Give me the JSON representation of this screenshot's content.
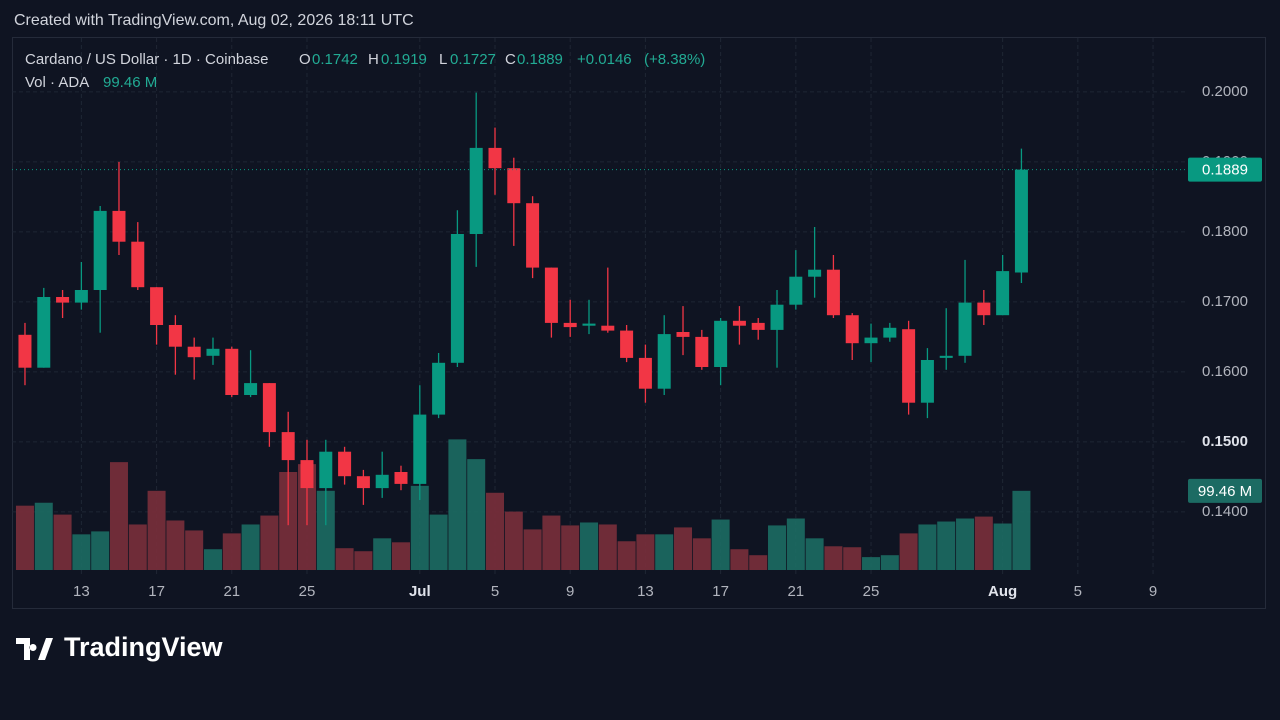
{
  "chart_data": {
    "type": "candlestick",
    "watermark": "Created with TradingView.com, Aug 02, 2026 18:11 UTC",
    "symbol": "Cardano / US Dollar · 1D · Coinbase",
    "ohlc_labels": [
      "O",
      "H",
      "L",
      "C"
    ],
    "change": "+0.0146",
    "change_pct": "(+8.38%)",
    "volume_name": "Vol · ADA",
    "volume_value_label": "99.46 M",
    "brand": "TradingView",
    "open": [
      0.1653,
      0.1606,
      0.1707,
      0.1699,
      0.1717,
      0.183,
      0.1786,
      0.1721,
      0.1667,
      0.1636,
      0.1623,
      0.1633,
      0.1567,
      0.1584,
      0.1514,
      0.1474,
      0.1434,
      0.1486,
      0.1451,
      0.1434,
      0.1457,
      0.144,
      0.1539,
      0.1613,
      0.1797,
      0.192,
      0.1891,
      0.1841,
      0.1749,
      0.167,
      0.1666,
      0.1666,
      0.1659,
      0.162,
      0.1576,
      0.1657,
      0.165,
      0.1607,
      0.1673,
      0.167,
      0.166,
      0.1696,
      0.1736,
      0.1746,
      0.1681,
      0.1641,
      0.1649,
      0.1661,
      0.1556,
      0.162,
      0.1623,
      0.1699,
      0.1681,
      0.1742
    ],
    "high": [
      0.167,
      0.172,
      0.1717,
      0.1757,
      0.1837,
      0.19,
      0.1814,
      0.1721,
      0.1681,
      0.1649,
      0.1649,
      0.1636,
      0.1631,
      0.1584,
      0.1543,
      0.1503,
      0.1503,
      0.1493,
      0.146,
      0.1486,
      0.1466,
      0.1581,
      0.1627,
      0.1831,
      0.1999,
      0.1949,
      0.1906,
      0.1851,
      0.1749,
      0.1703,
      0.1703,
      0.1749,
      0.1667,
      0.1639,
      0.1681,
      0.1694,
      0.166,
      0.1677,
      0.1694,
      0.1677,
      0.1717,
      0.1774,
      0.1807,
      0.1767,
      0.1684,
      0.1669,
      0.167,
      0.1673,
      0.1634,
      0.1691,
      0.176,
      0.1717,
      0.1767,
      0.1919
    ],
    "low": [
      0.1581,
      0.1606,
      0.1677,
      0.1689,
      0.1656,
      0.1767,
      0.1717,
      0.1639,
      0.1596,
      0.1589,
      0.161,
      0.1564,
      0.1564,
      0.1493,
      0.1381,
      0.1381,
      0.1381,
      0.1439,
      0.141,
      0.142,
      0.1431,
      0.1417,
      0.1534,
      0.1607,
      0.175,
      0.1853,
      0.178,
      0.1734,
      0.1649,
      0.165,
      0.1654,
      0.1656,
      0.1614,
      0.1556,
      0.1567,
      0.1624,
      0.1603,
      0.1581,
      0.1639,
      0.1646,
      0.1606,
      0.1689,
      0.1706,
      0.1677,
      0.1617,
      0.1614,
      0.1643,
      0.1539,
      0.1534,
      0.1603,
      0.1613,
      0.1667,
      0.1681,
      0.1727
    ],
    "close": [
      0.1606,
      0.1707,
      0.1699,
      0.1717,
      0.183,
      0.1786,
      0.1721,
      0.1667,
      0.1636,
      0.1621,
      0.1633,
      0.1567,
      0.1584,
      0.1514,
      0.1474,
      0.1434,
      0.1486,
      0.1451,
      0.1434,
      0.1453,
      0.144,
      0.1539,
      0.1613,
      0.1797,
      0.192,
      0.1891,
      0.1841,
      0.1749,
      0.167,
      0.1664,
      0.1669,
      0.1659,
      0.162,
      0.1576,
      0.1654,
      0.165,
      0.1607,
      0.1673,
      0.1666,
      0.166,
      0.1696,
      0.1736,
      0.1746,
      0.1681,
      0.1641,
      0.1649,
      0.1663,
      0.1556,
      0.1617,
      0.1623,
      0.1699,
      0.1681,
      0.1744,
      0.1889
    ],
    "volume": [
      80.8,
      84.5,
      69.6,
      44.8,
      48.5,
      135.5,
      57.2,
      99.5,
      62.2,
      49.7,
      26.1,
      46,
      57.2,
      68.4,
      123.1,
      133,
      99.5,
      27.4,
      23.6,
      39.8,
      34.8,
      105.7,
      69.6,
      164.1,
      139.3,
      97,
      73.4,
      51,
      68.4,
      56,
      59.7,
      57.2,
      36.1,
      44.8,
      44.8,
      53.5,
      39.8,
      63.4,
      26.1,
      18.6,
      56,
      64.7,
      39.8,
      29.8,
      28.6,
      16.2,
      18.6,
      46,
      57.2,
      60.9,
      64.7,
      67.1,
      58.4,
      99.46
    ],
    "up_color": "#089981",
    "down_color": "#f23645",
    "volume_up_color": "#1c6b63",
    "volume_down_color": "#7a2f3b",
    "xlim": [
      -0.69,
      61.7
    ],
    "xticks": [
      {
        "value": 3,
        "label": "13"
      },
      {
        "value": 7,
        "label": "17"
      },
      {
        "value": 11,
        "label": "21"
      },
      {
        "value": 15,
        "label": "25"
      },
      {
        "value": 21,
        "label": "Jul"
      },
      {
        "value": 25,
        "label": "5"
      },
      {
        "value": 29,
        "label": "9"
      },
      {
        "value": 33,
        "label": "13"
      },
      {
        "value": 37,
        "label": "17"
      },
      {
        "value": 41,
        "label": "21"
      },
      {
        "value": 45,
        "label": "25"
      },
      {
        "value": 52,
        "label": "Aug"
      },
      {
        "value": 56,
        "label": "5"
      },
      {
        "value": 60,
        "label": "9"
      }
    ],
    "ylim": [
      0.1317,
      0.2077
    ],
    "yticks": [
      {
        "value": 0.14,
        "label": "0.1400"
      },
      {
        "value": 0.15,
        "label": "0.1500"
      },
      {
        "value": 0.16,
        "label": "0.1600"
      },
      {
        "value": 0.17,
        "label": "0.1700"
      },
      {
        "value": 0.18,
        "label": "0.1800"
      },
      {
        "value": 0.19,
        "label": "0.1900"
      },
      {
        "value": 0.2,
        "label": "0.2000"
      }
    ],
    "volume_lim": [
      0,
      250
    ],
    "grid": true
  }
}
